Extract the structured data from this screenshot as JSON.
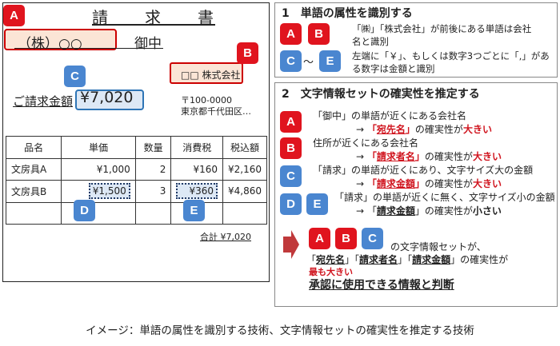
{
  "invoice": {
    "title": "請　　求　　書",
    "addressee": "（株）○○",
    "onchu": "御中",
    "issuer": "□□ 株式会社",
    "amount_label": "ご請求金額",
    "amount": "¥7,020",
    "postal": "〒100-0000",
    "address": "東京都千代田区…",
    "table": {
      "headers": [
        "品名",
        "単価",
        "数量",
        "消費税",
        "税込額"
      ],
      "rows": [
        [
          "文房具A",
          "¥1,000",
          "2",
          "¥160",
          "¥2,160"
        ],
        [
          "文房具B",
          "¥1,500",
          "3",
          "¥360",
          "¥4,860"
        ],
        [
          "",
          "",
          "",
          "",
          ""
        ]
      ]
    },
    "total": "合計 ¥7,020"
  },
  "badges": {
    "a": "A",
    "b": "B",
    "c": "C",
    "d": "D",
    "e": "E"
  },
  "section1": {
    "title": "1　単語の属性を識別する",
    "tilde": "〜",
    "text1a": "「㈱」「株式会社」が前後にある単語は会社",
    "text1b": "名と識別",
    "text2a": "左端に「￥」、もしくは数字3つごとに「,」があ",
    "text2b": "る数字は金額と識別"
  },
  "section2": {
    "title": "2　文字情報セットの確実性を推定する",
    "a1": "「御中」の単語が近くにある会社名",
    "a2_pre": "→ ",
    "a2_q": "「",
    "a2_k": "宛先名",
    "a2_q2": "」",
    "a2_mid": "の確実性が",
    "a2_end": "大きい",
    "b1": "住所が近くにある会社名",
    "b2_pre": "→ ",
    "b2_q": "「",
    "b2_k": "請求者名",
    "b2_q2": "」",
    "b2_mid": "の確実性が",
    "b2_end": "大きい",
    "c1": "「請求」の単語が近くにあり、文字サイズ大の金額",
    "c2_pre": "→ ",
    "c2_q": "「",
    "c2_k": "請求金額",
    "c2_q2": "」",
    "c2_mid": "の確実性が",
    "c2_end": "大きい",
    "de1": "「請求」の単語が近くに無く、文字サイズ小の金額",
    "de2_pre": "→ 「",
    "de2_k": "請求金額",
    "de2_q2": "」",
    "de2_mid": "の確実性が",
    "de2_end": "小さい",
    "conc1": "の文字情報セットが、",
    "conc2a": "「",
    "conc2k1": "宛先名",
    "conc2b": "」「",
    "conc2k2": "請求者名",
    "conc2c": "」「",
    "conc2k3": "請求金額",
    "conc2d": "」の確実性が",
    "conc3": "最も大きい",
    "conc4": "承認に使用できる情報と判断"
  },
  "caption": "イメージ：単語の属性を識別する技術、文字情報セットの確実性を推定する技術",
  "colors": {
    "red": "#e0141e",
    "blue": "#4a86d0",
    "arrow": "#c0393b"
  }
}
